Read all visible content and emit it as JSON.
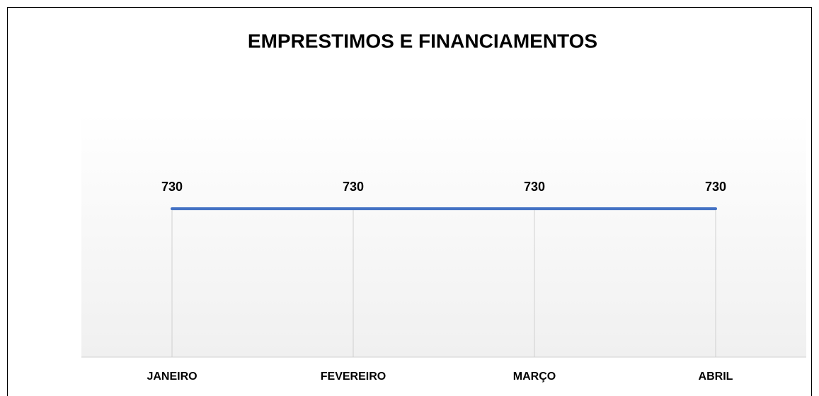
{
  "chart_data": {
    "type": "line",
    "title": "EMPRESTIMOS E FINANCIAMENTOS",
    "categories": [
      "JANEIRO",
      "FEVEREIRO",
      "MARÇO",
      "ABRIL"
    ],
    "values": [
      730,
      730,
      730,
      730
    ],
    "color": "#4472c4",
    "ylim": [
      0,
      1200
    ]
  }
}
